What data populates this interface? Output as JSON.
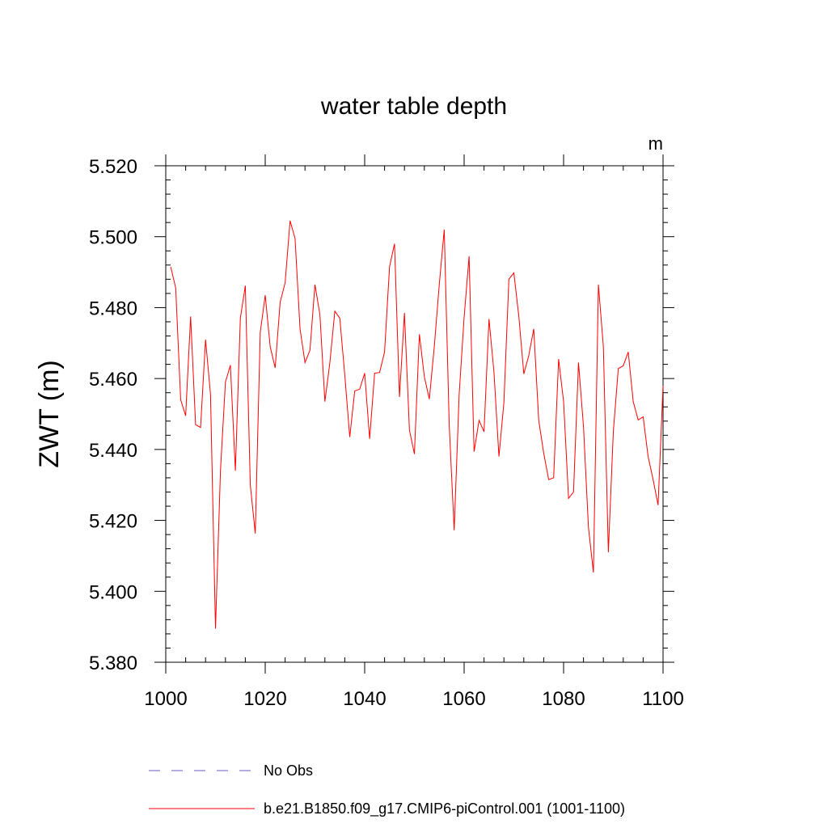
{
  "chart_data": {
    "type": "line",
    "title": "water table depth",
    "units": "m",
    "xlabel": "",
    "ylabel": "ZWT  (m)",
    "xlim": [
      1000,
      1100
    ],
    "ylim": [
      5.38,
      5.52
    ],
    "xticks": [
      1000,
      1020,
      1040,
      1060,
      1080,
      1100
    ],
    "xtick_labels": [
      "1000",
      "1020",
      "1040",
      "1060",
      "1080",
      "1100"
    ],
    "yticks": [
      5.38,
      5.4,
      5.42,
      5.44,
      5.46,
      5.48,
      5.5,
      5.52
    ],
    "ytick_labels": [
      "5.380",
      "5.400",
      "5.420",
      "5.440",
      "5.460",
      "5.480",
      "5.500",
      "5.520"
    ],
    "grid": false,
    "legend": [
      {
        "label": "No Obs",
        "color": "#6a5acd",
        "style": "dashed"
      },
      {
        "label": "b.e21.B1850.f09_g17.CMIP6-piControl.001 (1001-1100)",
        "color": "#ff0000",
        "style": "solid"
      }
    ],
    "series": [
      {
        "name": "b.e21.B1850.f09_g17.CMIP6-piControl.001 (1001-1100)",
        "color": "#ff0000",
        "x": [
          1001,
          1002,
          1003,
          1004,
          1005,
          1006,
          1007,
          1008,
          1009,
          1010,
          1011,
          1012,
          1013,
          1014,
          1015,
          1016,
          1017,
          1018,
          1019,
          1020,
          1021,
          1022,
          1023,
          1024,
          1025,
          1026,
          1027,
          1028,
          1029,
          1030,
          1031,
          1032,
          1033,
          1034,
          1035,
          1036,
          1037,
          1038,
          1039,
          1040,
          1041,
          1042,
          1043,
          1044,
          1045,
          1046,
          1047,
          1048,
          1049,
          1050,
          1051,
          1052,
          1053,
          1054,
          1055,
          1056,
          1057,
          1058,
          1059,
          1060,
          1061,
          1062,
          1063,
          1064,
          1065,
          1066,
          1067,
          1068,
          1069,
          1070,
          1071,
          1072,
          1073,
          1074,
          1075,
          1076,
          1077,
          1078,
          1079,
          1080,
          1081,
          1082,
          1083,
          1084,
          1085,
          1086,
          1087,
          1088,
          1089,
          1090,
          1091,
          1092,
          1093,
          1094,
          1095,
          1096,
          1097,
          1098,
          1099,
          1100
        ],
        "values": [
          5.4915,
          5.4855,
          5.454,
          5.4495,
          5.4775,
          5.447,
          5.4462,
          5.471,
          5.4555,
          5.3895,
          5.434,
          5.459,
          5.4638,
          5.434,
          5.477,
          5.4862,
          5.43,
          5.4163,
          5.473,
          5.4835,
          5.469,
          5.463,
          5.4815,
          5.487,
          5.5045,
          5.4995,
          5.474,
          5.4645,
          5.468,
          5.4865,
          5.478,
          5.4535,
          5.4645,
          5.479,
          5.477,
          5.461,
          5.4435,
          5.4565,
          5.457,
          5.4615,
          5.443,
          5.4615,
          5.4617,
          5.4675,
          5.4915,
          5.498,
          5.4548,
          5.4785,
          5.4455,
          5.4387,
          5.4725,
          5.4605,
          5.4542,
          5.469,
          5.4865,
          5.502,
          5.447,
          5.4172,
          5.4555,
          5.4773,
          5.4945,
          5.4394,
          5.4482,
          5.445,
          5.4768,
          5.4618,
          5.438,
          5.4533,
          5.488,
          5.4898,
          5.4775,
          5.4613,
          5.4665,
          5.474,
          5.4482,
          5.439,
          5.4315,
          5.432,
          5.4655,
          5.4535,
          5.4262,
          5.428,
          5.4645,
          5.4465,
          5.418,
          5.4053,
          5.4865,
          5.469,
          5.411,
          5.445,
          5.4628,
          5.4636,
          5.4675,
          5.4535,
          5.4483,
          5.4492,
          5.438,
          5.4315,
          5.4243,
          5.458
        ]
      }
    ]
  }
}
